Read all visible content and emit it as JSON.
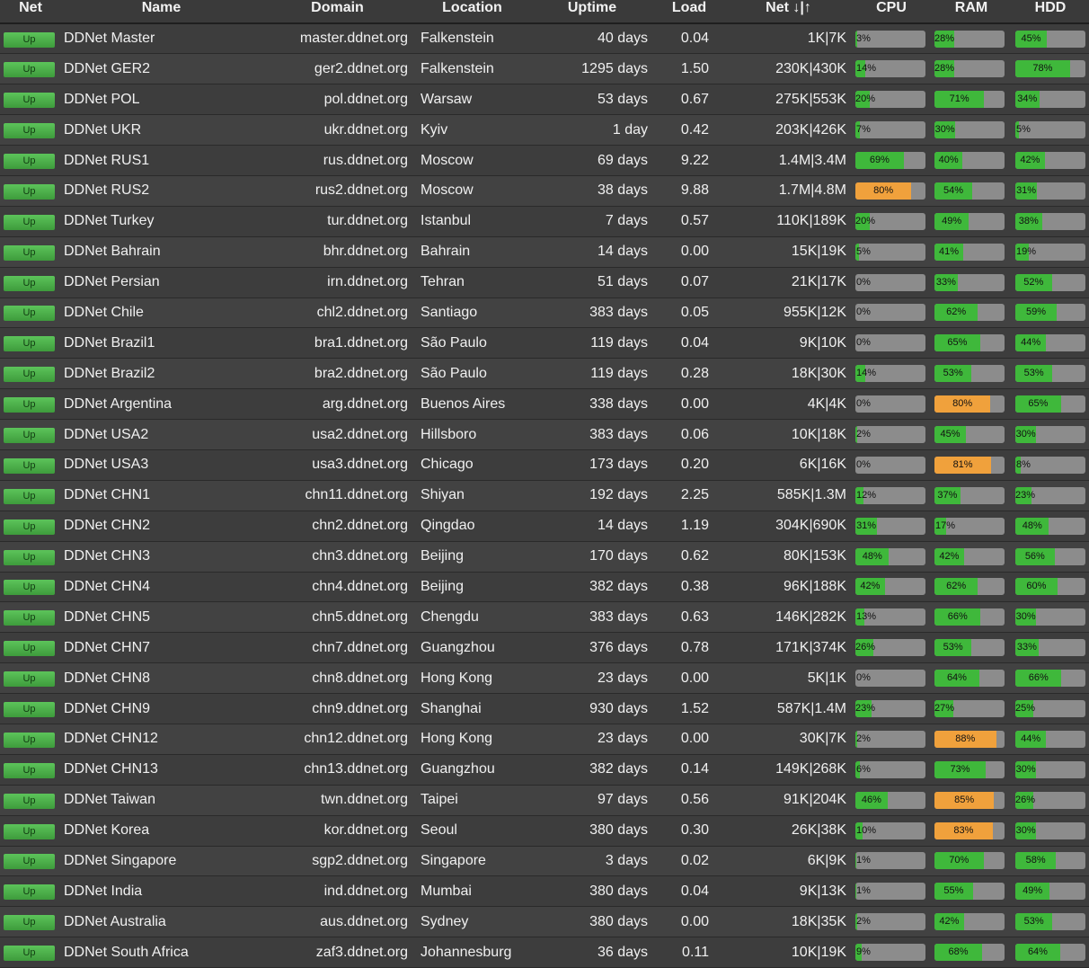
{
  "headers": {
    "net": "Net",
    "name": "Name",
    "domain": "Domain",
    "location": "Location",
    "uptime": "Uptime",
    "load": "Load",
    "netio": "Net ↓|↑",
    "cpu": "CPU",
    "ram": "RAM",
    "hdd": "HDD"
  },
  "colors": {
    "ok": "#3fb83b",
    "warning": "#f0a13c",
    "track": "#8c8c8c",
    "background": "#3a3a3a"
  },
  "servers": [
    {
      "status": "Up",
      "name": "DDNet Master",
      "domain": "master.ddnet.org",
      "location": "Falkenstein",
      "uptime": "40 days",
      "load": "0.04",
      "net": "1K|7K",
      "cpu": 3,
      "ram": 28,
      "hdd": 45
    },
    {
      "status": "Up",
      "name": "DDNet GER2",
      "domain": "ger2.ddnet.org",
      "location": "Falkenstein",
      "uptime": "1295 days",
      "load": "1.50",
      "net": "230K|430K",
      "cpu": 14,
      "ram": 28,
      "hdd": 78
    },
    {
      "status": "Up",
      "name": "DDNet POL",
      "domain": "pol.ddnet.org",
      "location": "Warsaw",
      "uptime": "53 days",
      "load": "0.67",
      "net": "275K|553K",
      "cpu": 20,
      "ram": 71,
      "hdd": 34
    },
    {
      "status": "Up",
      "name": "DDNet UKR",
      "domain": "ukr.ddnet.org",
      "location": "Kyiv",
      "uptime": "1 day",
      "load": "0.42",
      "net": "203K|426K",
      "cpu": 7,
      "ram": 30,
      "hdd": 5
    },
    {
      "status": "Up",
      "name": "DDNet RUS1",
      "domain": "rus.ddnet.org",
      "location": "Moscow",
      "uptime": "69 days",
      "load": "9.22",
      "net": "1.4M|3.4M",
      "cpu": 69,
      "ram": 40,
      "hdd": 42
    },
    {
      "status": "Up",
      "name": "DDNet RUS2",
      "domain": "rus2.ddnet.org",
      "location": "Moscow",
      "uptime": "38 days",
      "load": "9.88",
      "net": "1.7M|4.8M",
      "cpu": 80,
      "ram": 54,
      "hdd": 31
    },
    {
      "status": "Up",
      "name": "DDNet Turkey",
      "domain": "tur.ddnet.org",
      "location": "Istanbul",
      "uptime": "7 days",
      "load": "0.57",
      "net": "110K|189K",
      "cpu": 20,
      "ram": 49,
      "hdd": 38
    },
    {
      "status": "Up",
      "name": "DDNet Bahrain",
      "domain": "bhr.ddnet.org",
      "location": "Bahrain",
      "uptime": "14 days",
      "load": "0.00",
      "net": "15K|19K",
      "cpu": 5,
      "ram": 41,
      "hdd": 19
    },
    {
      "status": "Up",
      "name": "DDNet Persian",
      "domain": "irn.ddnet.org",
      "location": "Tehran",
      "uptime": "51 days",
      "load": "0.07",
      "net": "21K|17K",
      "cpu": 0,
      "ram": 33,
      "hdd": 52
    },
    {
      "status": "Up",
      "name": "DDNet Chile",
      "domain": "chl2.ddnet.org",
      "location": "Santiago",
      "uptime": "383 days",
      "load": "0.05",
      "net": "955K|12K",
      "cpu": 0,
      "ram": 62,
      "hdd": 59
    },
    {
      "status": "Up",
      "name": "DDNet Brazil1",
      "domain": "bra1.ddnet.org",
      "location": "São Paulo",
      "uptime": "119 days",
      "load": "0.04",
      "net": "9K|10K",
      "cpu": 0,
      "ram": 65,
      "hdd": 44
    },
    {
      "status": "Up",
      "name": "DDNet Brazil2",
      "domain": "bra2.ddnet.org",
      "location": "São Paulo",
      "uptime": "119 days",
      "load": "0.28",
      "net": "18K|30K",
      "cpu": 14,
      "ram": 53,
      "hdd": 53
    },
    {
      "status": "Up",
      "name": "DDNet Argentina",
      "domain": "arg.ddnet.org",
      "location": "Buenos Aires",
      "uptime": "338 days",
      "load": "0.00",
      "net": "4K|4K",
      "cpu": 0,
      "ram": 80,
      "hdd": 65
    },
    {
      "status": "Up",
      "name": "DDNet USA2",
      "domain": "usa2.ddnet.org",
      "location": "Hillsboro",
      "uptime": "383 days",
      "load": "0.06",
      "net": "10K|18K",
      "cpu": 2,
      "ram": 45,
      "hdd": 30
    },
    {
      "status": "Up",
      "name": "DDNet USA3",
      "domain": "usa3.ddnet.org",
      "location": "Chicago",
      "uptime": "173 days",
      "load": "0.20",
      "net": "6K|16K",
      "cpu": 0,
      "ram": 81,
      "hdd": 8
    },
    {
      "status": "Up",
      "name": "DDNet CHN1",
      "domain": "chn11.ddnet.org",
      "location": "Shiyan",
      "uptime": "192 days",
      "load": "2.25",
      "net": "585K|1.3M",
      "cpu": 12,
      "ram": 37,
      "hdd": 23
    },
    {
      "status": "Up",
      "name": "DDNet CHN2",
      "domain": "chn2.ddnet.org",
      "location": "Qingdao",
      "uptime": "14 days",
      "load": "1.19",
      "net": "304K|690K",
      "cpu": 31,
      "ram": 17,
      "hdd": 48
    },
    {
      "status": "Up",
      "name": "DDNet CHN3",
      "domain": "chn3.ddnet.org",
      "location": "Beijing",
      "uptime": "170 days",
      "load": "0.62",
      "net": "80K|153K",
      "cpu": 48,
      "ram": 42,
      "hdd": 56
    },
    {
      "status": "Up",
      "name": "DDNet CHN4",
      "domain": "chn4.ddnet.org",
      "location": "Beijing",
      "uptime": "382 days",
      "load": "0.38",
      "net": "96K|188K",
      "cpu": 42,
      "ram": 62,
      "hdd": 60
    },
    {
      "status": "Up",
      "name": "DDNet CHN5",
      "domain": "chn5.ddnet.org",
      "location": "Chengdu",
      "uptime": "383 days",
      "load": "0.63",
      "net": "146K|282K",
      "cpu": 13,
      "ram": 66,
      "hdd": 30
    },
    {
      "status": "Up",
      "name": "DDNet CHN7",
      "domain": "chn7.ddnet.org",
      "location": "Guangzhou",
      "uptime": "376 days",
      "load": "0.78",
      "net": "171K|374K",
      "cpu": 26,
      "ram": 53,
      "hdd": 33
    },
    {
      "status": "Up",
      "name": "DDNet CHN8",
      "domain": "chn8.ddnet.org",
      "location": "Hong Kong",
      "uptime": "23 days",
      "load": "0.00",
      "net": "5K|1K",
      "cpu": 0,
      "ram": 64,
      "hdd": 66
    },
    {
      "status": "Up",
      "name": "DDNet CHN9",
      "domain": "chn9.ddnet.org",
      "location": "Shanghai",
      "uptime": "930 days",
      "load": "1.52",
      "net": "587K|1.4M",
      "cpu": 23,
      "ram": 27,
      "hdd": 25
    },
    {
      "status": "Up",
      "name": "DDNet CHN12",
      "domain": "chn12.ddnet.org",
      "location": "Hong Kong",
      "uptime": "23 days",
      "load": "0.00",
      "net": "30K|7K",
      "cpu": 2,
      "ram": 88,
      "hdd": 44
    },
    {
      "status": "Up",
      "name": "DDNet CHN13",
      "domain": "chn13.ddnet.org",
      "location": "Guangzhou",
      "uptime": "382 days",
      "load": "0.14",
      "net": "149K|268K",
      "cpu": 6,
      "ram": 73,
      "hdd": 30
    },
    {
      "status": "Up",
      "name": "DDNet Taiwan",
      "domain": "twn.ddnet.org",
      "location": "Taipei",
      "uptime": "97 days",
      "load": "0.56",
      "net": "91K|204K",
      "cpu": 46,
      "ram": 85,
      "hdd": 26
    },
    {
      "status": "Up",
      "name": "DDNet Korea",
      "domain": "kor.ddnet.org",
      "location": "Seoul",
      "uptime": "380 days",
      "load": "0.30",
      "net": "26K|38K",
      "cpu": 10,
      "ram": 83,
      "hdd": 30
    },
    {
      "status": "Up",
      "name": "DDNet Singapore",
      "domain": "sgp2.ddnet.org",
      "location": "Singapore",
      "uptime": "3 days",
      "load": "0.02",
      "net": "6K|9K",
      "cpu": 1,
      "ram": 70,
      "hdd": 58
    },
    {
      "status": "Up",
      "name": "DDNet India",
      "domain": "ind.ddnet.org",
      "location": "Mumbai",
      "uptime": "380 days",
      "load": "0.04",
      "net": "9K|13K",
      "cpu": 1,
      "ram": 55,
      "hdd": 49
    },
    {
      "status": "Up",
      "name": "DDNet Australia",
      "domain": "aus.ddnet.org",
      "location": "Sydney",
      "uptime": "380 days",
      "load": "0.00",
      "net": "18K|35K",
      "cpu": 2,
      "ram": 42,
      "hdd": 53
    },
    {
      "status": "Up",
      "name": "DDNet South Africa",
      "domain": "zaf3.ddnet.org",
      "location": "Johannesburg",
      "uptime": "36 days",
      "load": "0.11",
      "net": "10K|19K",
      "cpu": 9,
      "ram": 68,
      "hdd": 64
    }
  ]
}
